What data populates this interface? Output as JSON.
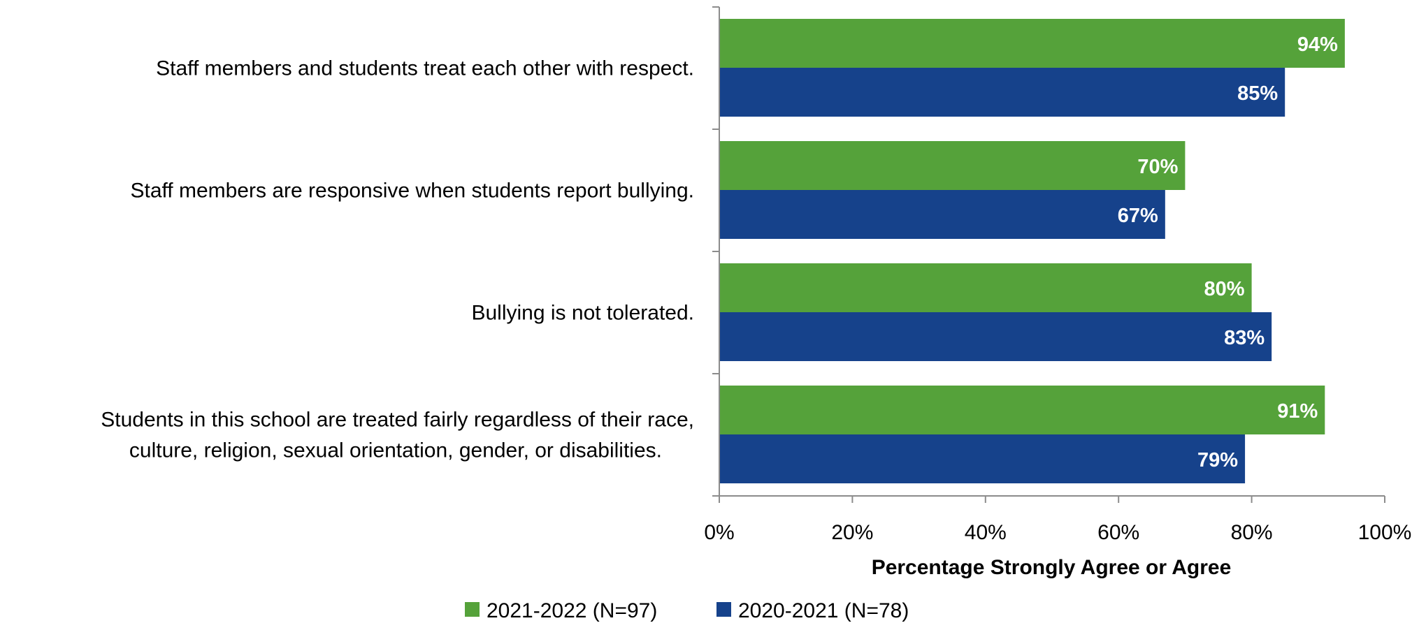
{
  "chart_data": {
    "type": "bar",
    "orientation": "horizontal",
    "categories": [
      [
        "Staff members and students treat each other with respect."
      ],
      [
        "Staff members are responsive when students report bullying."
      ],
      [
        "Bullying is not tolerated."
      ],
      [
        "Students in this school are treated fairly regardless of their race,",
        "culture, religion, sexual orientation, gender, or disabilities."
      ]
    ],
    "series": [
      {
        "name": "2021-2022 (N=97)",
        "color": "#55a23a",
        "values": [
          94,
          70,
          80,
          91
        ],
        "labels": [
          "94%",
          "70%",
          "80%",
          "91%"
        ]
      },
      {
        "name": "2020-2021 (N=78)",
        "color": "#16428b",
        "values": [
          85,
          67,
          83,
          79
        ],
        "labels": [
          "85%",
          "67%",
          "83%",
          "79%"
        ]
      }
    ],
    "xlabel": "Percentage Strongly Agree or Agree",
    "xlim": [
      0,
      100
    ],
    "ticks": [
      0,
      20,
      40,
      60,
      80,
      100
    ],
    "tick_labels": [
      "0%",
      "20%",
      "40%",
      "60%",
      "80%",
      "100%"
    ],
    "grid": false,
    "legend_position": "bottom",
    "axis_color": "#8c8c8c"
  }
}
